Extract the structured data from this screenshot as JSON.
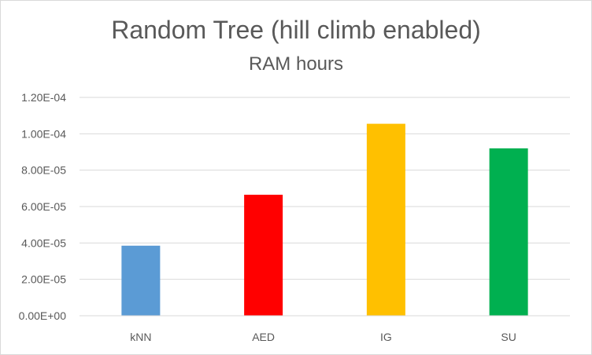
{
  "chart_data": {
    "type": "bar",
    "title": "Random Tree (hill climb enabled)",
    "subtitle": "RAM hours",
    "xlabel": "",
    "ylabel": "",
    "categories": [
      "kNN",
      "AED",
      "IG",
      "SU"
    ],
    "values": [
      3.85e-05,
      6.65e-05,
      0.0001055,
      9.2e-05
    ],
    "colors": [
      "#5b9bd5",
      "#ff0000",
      "#ffc000",
      "#00b050"
    ],
    "ylim": [
      0,
      0.00012
    ],
    "yticks": [
      0,
      2e-05,
      4e-05,
      6e-05,
      8e-05,
      0.0001,
      0.00012
    ],
    "ytick_labels": [
      "0.00E+00",
      "2.00E-05",
      "4.00E-05",
      "6.00E-05",
      "8.00E-05",
      "1.00E-04",
      "1.20E-04"
    ],
    "grid": true,
    "gridline_color": "#d9d9d9",
    "legend": false
  }
}
